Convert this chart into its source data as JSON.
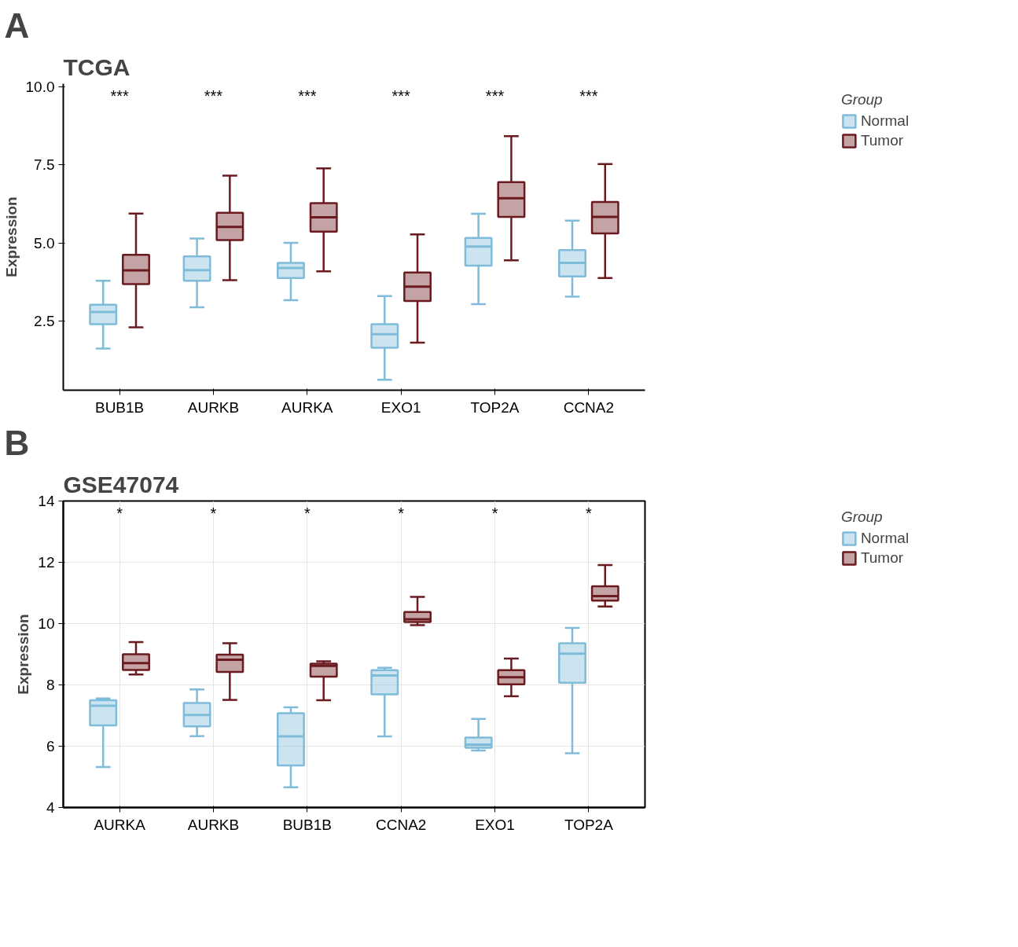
{
  "chart_data": [
    {
      "type": "box",
      "title": "TCGA",
      "subtitle": "A",
      "annotations": [
        "***",
        "***",
        "***",
        "***",
        "***",
        "***"
      ],
      "ylabel": "Expression",
      "legend_title": "Group",
      "legend": "top right",
      "grid": false,
      "categories": [
        "BUB1B",
        "AURKB",
        "AURKA",
        "EXO1",
        "TOP2A",
        "CCNA2"
      ],
      "ylim": [
        0.3,
        10.1
      ],
      "yticks": [
        {
          "value": 2.5,
          "label": "2.5"
        },
        {
          "value": 5,
          "label": "5.0"
        },
        {
          "value": 7.5,
          "label": "7.5"
        },
        {
          "value": 10,
          "label": "10.0"
        }
      ],
      "series": [
        {
          "name": "Normal",
          "color": "#7fbcd9",
          "boxes": [
            {
              "low": 1.63,
              "q1": 2.41,
              "median": 2.8,
              "q3": 3.03,
              "high": 3.8
            },
            {
              "low": 2.95,
              "q1": 3.8,
              "median": 4.14,
              "q3": 4.58,
              "high": 5.15
            },
            {
              "low": 3.18,
              "q1": 3.89,
              "median": 4.21,
              "q3": 4.37,
              "high": 5.01
            },
            {
              "low": 0.63,
              "q1": 1.66,
              "median": 2.09,
              "q3": 2.41,
              "high": 3.31
            },
            {
              "low": 3.05,
              "q1": 4.28,
              "median": 4.89,
              "q3": 5.17,
              "high": 5.94
            },
            {
              "low": 3.29,
              "q1": 3.94,
              "median": 4.37,
              "q3": 4.78,
              "high": 5.72
            }
          ]
        },
        {
          "name": "Tumor",
          "color": "#6b1a1f",
          "boxes": [
            {
              "low": 2.31,
              "q1": 3.69,
              "median": 4.13,
              "q3": 4.63,
              "high": 5.95
            },
            {
              "low": 3.82,
              "q1": 5.1,
              "median": 5.52,
              "q3": 5.97,
              "high": 7.16
            },
            {
              "low": 4.1,
              "q1": 5.37,
              "median": 5.83,
              "q3": 6.28,
              "high": 7.39
            },
            {
              "low": 1.82,
              "q1": 3.15,
              "median": 3.61,
              "q3": 4.06,
              "high": 5.28
            },
            {
              "low": 4.45,
              "q1": 5.84,
              "median": 6.44,
              "q3": 6.95,
              "high": 8.42
            },
            {
              "low": 3.89,
              "q1": 5.31,
              "median": 5.84,
              "q3": 6.32,
              "high": 7.53
            }
          ]
        }
      ]
    },
    {
      "type": "box",
      "title": "GSE47074",
      "subtitle": "B",
      "annotations": [
        "*",
        "*",
        "*",
        "*",
        "*",
        "*"
      ],
      "ylabel": "Expression",
      "legend_title": "Group",
      "legend": "top right",
      "grid": true,
      "categories": [
        "AURKA",
        "AURKB",
        "BUB1B",
        "CCNA2",
        "EXO1",
        "TOP2A"
      ],
      "ylim": [
        4,
        14
      ],
      "yticks": [
        4,
        6,
        8,
        10,
        12,
        14
      ],
      "series": [
        {
          "name": "Normal",
          "color": "#7fbcd9",
          "boxes": [
            {
              "low": 5.32,
              "q1": 6.68,
              "median": 7.32,
              "q3": 7.5,
              "high": 7.56
            },
            {
              "low": 6.33,
              "q1": 6.65,
              "median": 7.02,
              "q3": 7.41,
              "high": 7.85
            },
            {
              "low": 4.66,
              "q1": 5.37,
              "median": 6.32,
              "q3": 7.08,
              "high": 7.27
            },
            {
              "low": 6.32,
              "q1": 7.69,
              "median": 8.31,
              "q3": 8.48,
              "high": 8.56
            },
            {
              "low": 5.86,
              "q1": 5.95,
              "median": 6.05,
              "q3": 6.28,
              "high": 6.89
            },
            {
              "low": 5.77,
              "q1": 8.07,
              "median": 9.02,
              "q3": 9.36,
              "high": 9.86
            }
          ]
        },
        {
          "name": "Tumor",
          "color": "#6b1a1f",
          "boxes": [
            {
              "low": 8.34,
              "q1": 8.49,
              "median": 8.71,
              "q3": 9.0,
              "high": 9.4
            },
            {
              "low": 7.51,
              "q1": 8.42,
              "median": 8.82,
              "q3": 8.99,
              "high": 9.36
            },
            {
              "low": 7.5,
              "q1": 8.27,
              "median": 8.62,
              "q3": 8.69,
              "high": 8.77
            },
            {
              "low": 9.95,
              "q1": 10.05,
              "median": 10.14,
              "q3": 10.38,
              "high": 10.87
            },
            {
              "low": 7.63,
              "q1": 8.02,
              "median": 8.25,
              "q3": 8.48,
              "high": 8.86
            },
            {
              "low": 10.56,
              "q1": 10.75,
              "median": 10.9,
              "q3": 11.22,
              "high": 11.91
            }
          ]
        }
      ]
    }
  ]
}
